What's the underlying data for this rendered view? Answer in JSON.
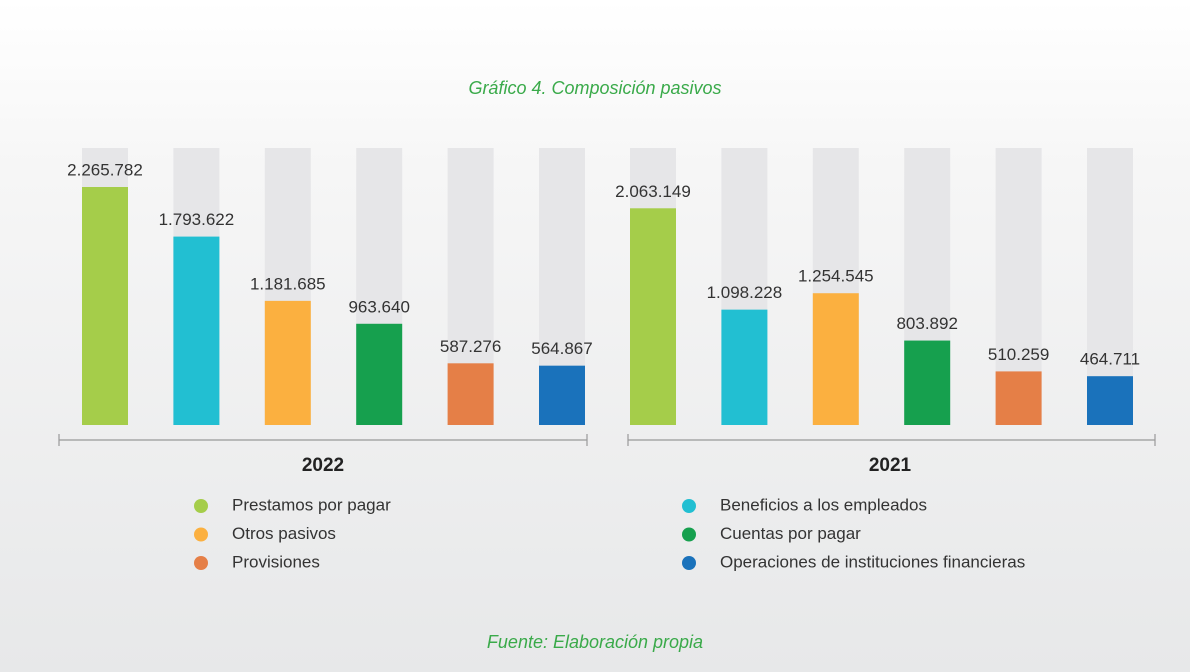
{
  "chart_data": {
    "type": "bar",
    "title": "Gráfico 4. Composición pasivos",
    "source": "Fuente: Elaboración propia",
    "categories": [
      "2022",
      "2021"
    ],
    "series": [
      {
        "name": "Prestamos por pagar",
        "color": "#a5cd4a",
        "values": [
          2265782,
          2063149
        ],
        "value_labels": [
          "2.265.782",
          "2.063.149"
        ]
      },
      {
        "name": "Beneficios a los empleados",
        "color": "#22bfd2",
        "values": [
          1793622,
          1098228
        ],
        "value_labels": [
          "1.793.622",
          "1.098.228"
        ]
      },
      {
        "name": "Otros pasivos",
        "color": "#fbb040",
        "values": [
          1181685,
          1254545
        ],
        "value_labels": [
          "1.181.685",
          "1.254.545"
        ]
      },
      {
        "name": "Cuentas por pagar",
        "color": "#16a04e",
        "values": [
          963640,
          803892
        ],
        "value_labels": [
          "963.640",
          "803.892"
        ]
      },
      {
        "name": "Provisiones",
        "color": "#e57f47",
        "values": [
          587276,
          510259
        ],
        "value_labels": [
          "587.276",
          "510.259"
        ]
      },
      {
        "name": "Operaciones de instituciones financieras",
        "color": "#1a72bb",
        "values": [
          564867,
          464711
        ],
        "value_labels": [
          "564.867",
          "464.711"
        ]
      }
    ]
  }
}
